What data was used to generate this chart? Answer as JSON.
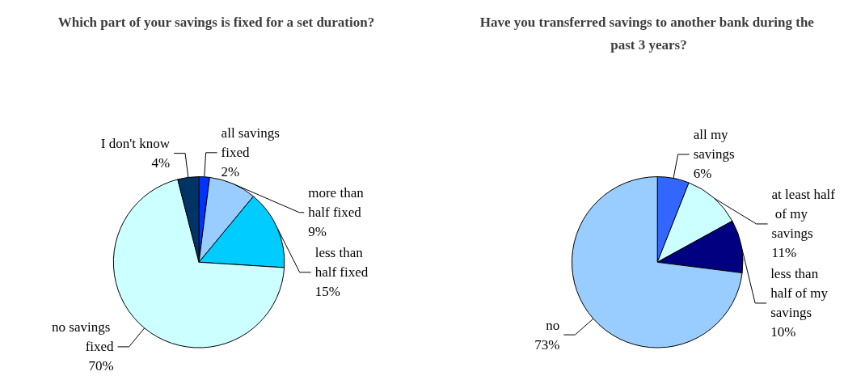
{
  "chart_data": [
    {
      "type": "pie",
      "title": "Which part of your savings is fixed for a set duration?",
      "categories": [
        "all savings fixed",
        "more than half fixed",
        "less than half fixed",
        "no savings fixed",
        "I don't know"
      ],
      "values": [
        2,
        9,
        15,
        70,
        4
      ],
      "value_labels": [
        "2%",
        "9%",
        "15%",
        "70%",
        "4%"
      ],
      "colors": [
        "#0033ff",
        "#99ccff",
        "#00ccff",
        "#ccffff",
        "#003366"
      ],
      "legend": false
    },
    {
      "type": "pie",
      "title": "Have you transferred savings to another bank during the past 3 years?",
      "categories": [
        "all my savings",
        "at least half of my savings",
        "less than half of my savings",
        "no"
      ],
      "values": [
        6,
        11,
        10,
        73
      ],
      "value_labels": [
        "6%",
        "11%",
        "10%",
        "73%"
      ],
      "colors": [
        "#3366ff",
        "#ccffff",
        "#000080",
        "#99ccff"
      ],
      "legend": false
    }
  ]
}
